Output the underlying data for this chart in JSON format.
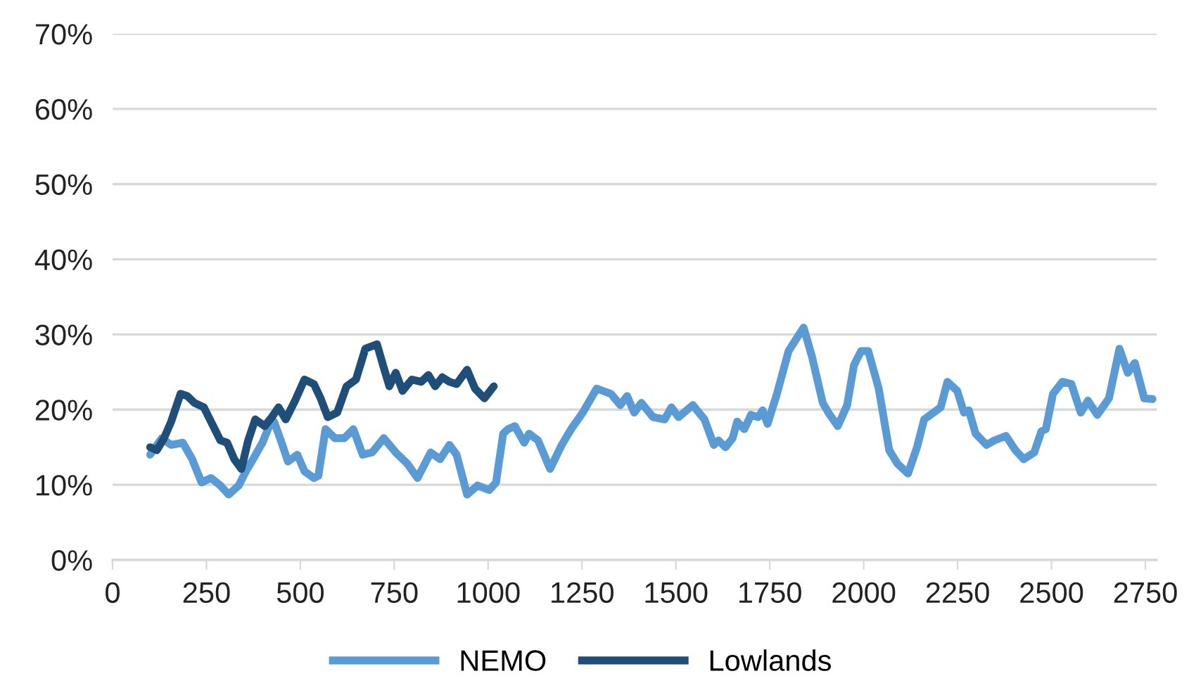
{
  "chart_data": {
    "type": "line",
    "xlim": [
      0,
      2780
    ],
    "xticks": [
      0,
      250,
      500,
      750,
      1000,
      1250,
      1500,
      1750,
      2000,
      2250,
      2500,
      2750
    ],
    "ylim": [
      0,
      70
    ],
    "yticks": [
      {
        "value": 0,
        "label": "0%"
      },
      {
        "value": 10,
        "label": "10%"
      },
      {
        "value": 20,
        "label": "20%"
      },
      {
        "value": 30,
        "label": "30%"
      },
      {
        "value": 40,
        "label": "40%"
      },
      {
        "value": 50,
        "label": "50%"
      },
      {
        "value": 60,
        "label": "60%"
      },
      {
        "value": 70,
        "label": "70%"
      }
    ],
    "grid": "y",
    "legend": "bottom",
    "marker": "none",
    "line_style": "solid",
    "series": [
      {
        "name": "NEMO",
        "color": "#5b9bd5",
        "x": [
          100,
          131,
          156,
          187,
          212,
          237,
          262,
          287,
          309,
          336,
          355,
          374,
          399,
          417,
          430,
          448,
          467,
          492,
          511,
          536,
          548,
          567,
          592,
          617,
          641,
          666,
          691,
          722,
          754,
          785,
          812,
          847,
          872,
          897,
          916,
          944,
          972,
          1003,
          1021,
          1040,
          1053,
          1071,
          1096,
          1109,
          1133,
          1165,
          1196,
          1221,
          1252,
          1289,
          1327,
          1352,
          1370,
          1389,
          1408,
          1439,
          1470,
          1488,
          1507,
          1545,
          1576,
          1601,
          1613,
          1632,
          1651,
          1663,
          1682,
          1700,
          1719,
          1731,
          1744,
          1769,
          1800,
          1819,
          1840,
          1862,
          1891,
          1906,
          1931,
          1956,
          1974,
          1993,
          2012,
          2040,
          2068,
          2090,
          2118,
          2142,
          2161,
          2186,
          2205,
          2223,
          2249,
          2267,
          2280,
          2298,
          2327,
          2348,
          2379,
          2404,
          2426,
          2454,
          2473,
          2485,
          2504,
          2529,
          2553,
          2578,
          2597,
          2622,
          2653,
          2681,
          2703,
          2722,
          2747,
          2769
        ],
        "values": [
          14.0,
          16.2,
          15.3,
          15.6,
          13.4,
          10.3,
          10.9,
          9.9,
          8.7,
          9.9,
          11.8,
          13.4,
          15.6,
          17.8,
          18.4,
          15.9,
          13.1,
          14.0,
          11.8,
          10.9,
          11.2,
          17.4,
          16.2,
          16.2,
          17.4,
          14.0,
          14.3,
          16.2,
          14.3,
          12.8,
          10.9,
          14.3,
          13.4,
          15.3,
          14.0,
          8.7,
          9.9,
          9.3,
          10.3,
          16.8,
          17.4,
          17.8,
          15.6,
          16.8,
          15.9,
          12.1,
          15.3,
          17.4,
          19.6,
          22.8,
          22.1,
          20.6,
          21.8,
          19.6,
          20.9,
          19.0,
          18.7,
          20.3,
          19.0,
          20.6,
          18.7,
          15.3,
          15.9,
          15.0,
          16.2,
          18.4,
          17.4,
          19.3,
          19.0,
          19.9,
          18.1,
          22.1,
          27.8,
          29.3,
          30.9,
          27.1,
          20.9,
          19.6,
          17.8,
          20.6,
          25.9,
          27.8,
          27.8,
          22.8,
          14.6,
          12.8,
          11.5,
          15.0,
          18.7,
          19.6,
          20.3,
          23.7,
          22.5,
          19.6,
          19.9,
          16.8,
          15.3,
          15.9,
          16.5,
          14.6,
          13.4,
          14.3,
          17.1,
          17.4,
          22.1,
          23.7,
          23.4,
          19.6,
          21.2,
          19.3,
          21.5,
          28.1,
          24.9,
          26.2,
          21.5,
          21.4
        ]
      },
      {
        "name": "Lowlands",
        "color": "#1f4e79",
        "x": [
          100,
          118,
          137,
          156,
          181,
          199,
          218,
          243,
          268,
          287,
          305,
          324,
          343,
          361,
          380,
          405,
          424,
          442,
          461,
          486,
          511,
          536,
          554,
          573,
          598,
          623,
          648,
          673,
          704,
          722,
          737,
          754,
          772,
          797,
          822,
          841,
          859,
          878,
          897,
          916,
          944,
          965,
          990,
          1015
        ],
        "values": [
          15.0,
          14.6,
          16.2,
          18.4,
          22.1,
          21.8,
          20.9,
          20.3,
          17.8,
          15.9,
          15.6,
          13.4,
          12.1,
          15.9,
          18.7,
          17.8,
          19.0,
          20.3,
          18.7,
          21.2,
          24.0,
          23.4,
          21.5,
          19.0,
          19.6,
          23.1,
          24.0,
          28.1,
          28.7,
          25.6,
          23.1,
          24.9,
          22.5,
          24.0,
          23.7,
          24.6,
          23.1,
          24.3,
          23.7,
          23.4,
          25.3,
          22.8,
          21.5,
          23.1
        ]
      }
    ]
  }
}
